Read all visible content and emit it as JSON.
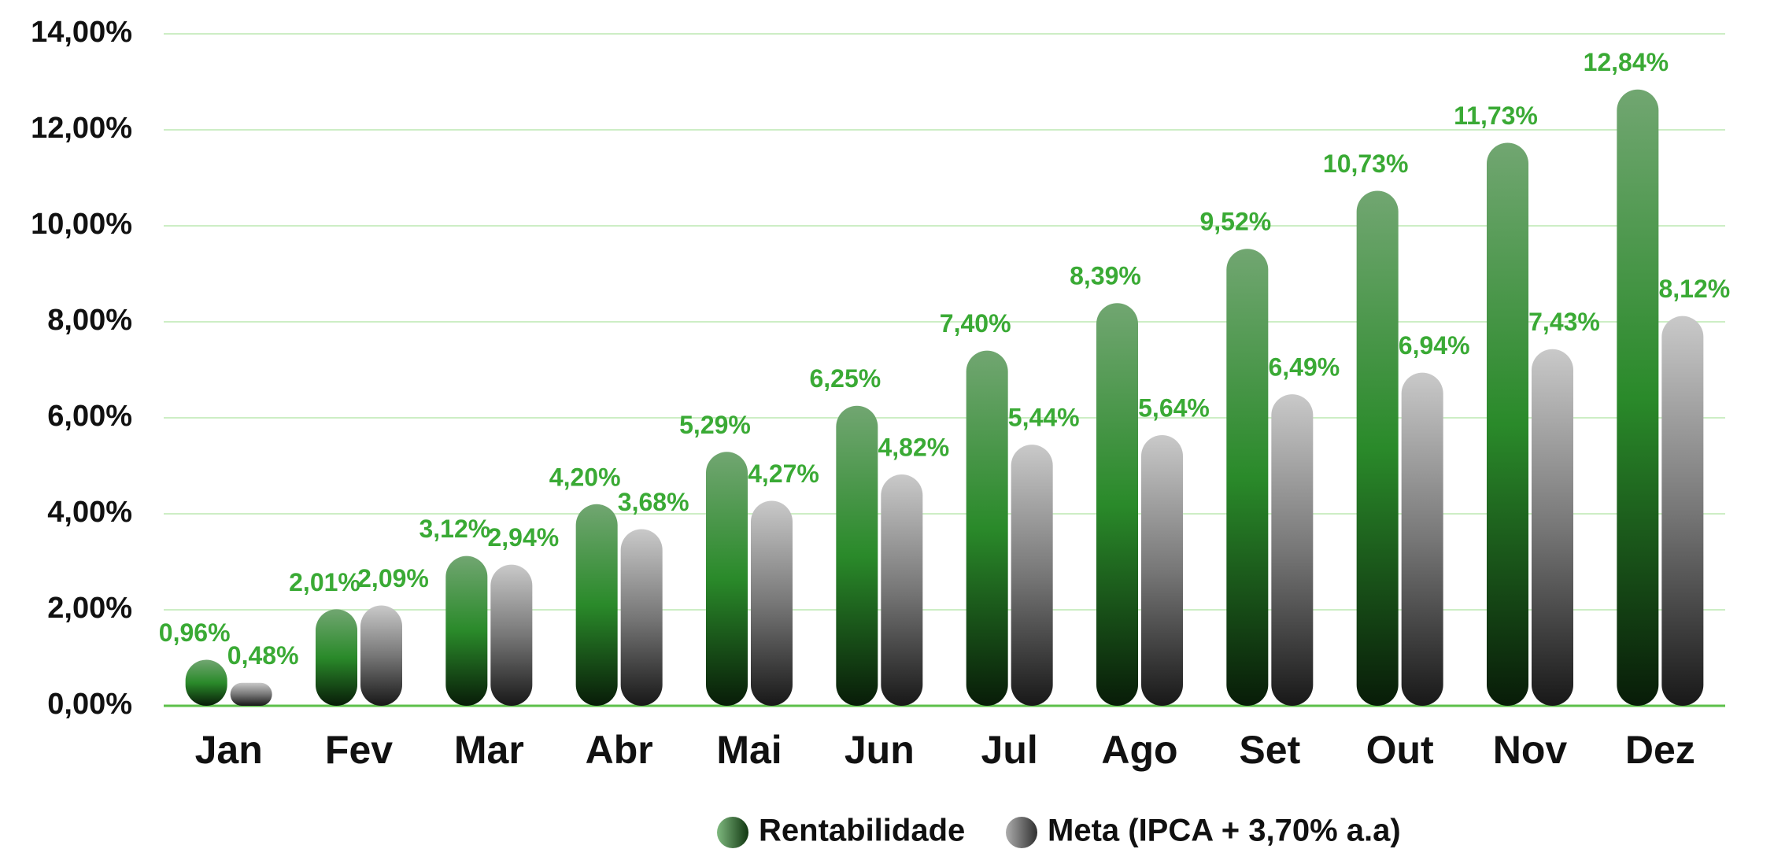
{
  "chart_data": {
    "type": "bar",
    "categories": [
      "Jan",
      "Fev",
      "Mar",
      "Abr",
      "Mai",
      "Jun",
      "Jul",
      "Ago",
      "Set",
      "Out",
      "Nov",
      "Dez"
    ],
    "series": [
      {
        "name": "Rentabilidade",
        "color": "#2a8a2a",
        "values": [
          0.96,
          2.01,
          3.12,
          4.2,
          5.29,
          6.25,
          7.4,
          8.39,
          9.52,
          10.73,
          11.73,
          12.84
        ],
        "value_labels": [
          "0,96%",
          "2,01%",
          "3,12%",
          "4,20%",
          "5,29%",
          "6,25%",
          "7,40%",
          "8,39%",
          "9,52%",
          "10,73%",
          "11,73%",
          "12,84%"
        ]
      },
      {
        "name": "Meta (IPCA + 3,70% a.a)",
        "color": "#777777",
        "values": [
          0.48,
          2.09,
          2.94,
          3.68,
          4.27,
          4.82,
          5.44,
          5.64,
          6.49,
          6.94,
          7.43,
          8.12
        ],
        "value_labels": [
          "0,48%",
          "2,09%",
          "2,94%",
          "3,68%",
          "4,27%",
          "4,82%",
          "5,44%",
          "5,64%",
          "6,49%",
          "6,94%",
          "7,43%",
          "8,12%"
        ]
      }
    ],
    "ylim": [
      0,
      14
    ],
    "yticks": [
      {
        "value": 0,
        "label": "0,00%"
      },
      {
        "value": 2,
        "label": "2,00%"
      },
      {
        "value": 4,
        "label": "4,00%"
      },
      {
        "value": 6,
        "label": "6,00%"
      },
      {
        "value": 8,
        "label": "8,00%"
      },
      {
        "value": 10,
        "label": "10,00%"
      },
      {
        "value": 12,
        "label": "12,00%"
      },
      {
        "value": 14,
        "label": "14,00%"
      }
    ],
    "grid": true,
    "legend": "bottom"
  }
}
